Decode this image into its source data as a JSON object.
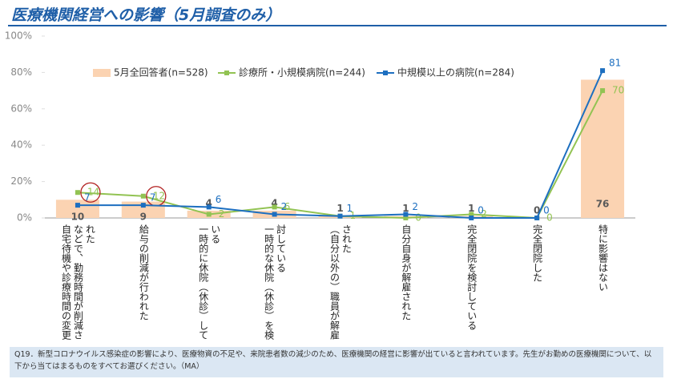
{
  "chart_data": {
    "type": "combo",
    "title": "医療機関経営への影響（5月調査のみ）",
    "categories": [
      "自宅待機や診療時間の変更などで、勤務時間が削減された",
      "給与の削減が行われた",
      "一時的に休院（休診）している",
      "一時的な休院（休診）を検討している",
      "（自分以外の）職員が解雇された",
      "自分自身が解雇された",
      "完全閉院を検討している",
      "完全閉院した",
      "特に影響はない"
    ],
    "series": [
      {
        "name": "5月全回答者(n=528)",
        "kind": "bar",
        "color": "#fbd3b2",
        "label_color": "#595959",
        "values": [
          10,
          9,
          4,
          4,
          1,
          1,
          1,
          0,
          76
        ]
      },
      {
        "name": "診療所・小規模病院(n=244)",
        "kind": "line",
        "color": "#92c353",
        "values": [
          14,
          12,
          2,
          6,
          1,
          0,
          2,
          0,
          70
        ]
      },
      {
        "name": "中規模以上の病院(n=284)",
        "kind": "line",
        "color": "#1d6fc0",
        "values": [
          7,
          7,
          6,
          2,
          1,
          2,
          0,
          0,
          81
        ]
      }
    ],
    "ylim": [
      0,
      100
    ],
    "yticks": [
      {
        "value": 0,
        "label": "0%"
      },
      {
        "value": 20,
        "label": "20%"
      },
      {
        "value": 40,
        "label": "40%"
      },
      {
        "value": 60,
        "label": "60%"
      },
      {
        "value": 80,
        "label": "80%"
      },
      {
        "value": 100,
        "label": "100%"
      }
    ],
    "footnote": "Q19．新型コロナウイルス感染症の影響により、医療物資の不足や、来院患者数の減少のため、医療機関の経営に影響が出ていると言われています。先生がお勤めの医療機関について、以下から当てはまるものをすべてお選びください。（MA）"
  }
}
